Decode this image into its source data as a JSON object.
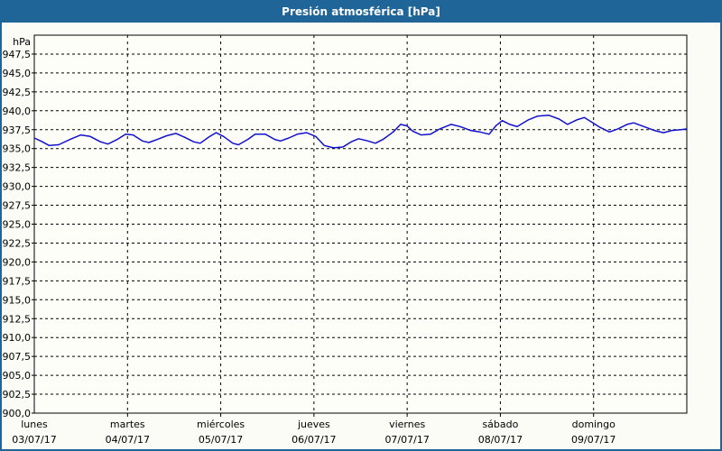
{
  "window": {
    "title": "Presión atmosférica [hPa]"
  },
  "colors": {
    "titlebar": "#1F6598",
    "border": "#1F6598",
    "content_bg": "#FBFCF5",
    "plot_bg": "#FEFEF9",
    "grid": "#000000",
    "axis": "#000000",
    "text": "#000000",
    "title_text": "#FFFFFF",
    "series_line": "#1111CC"
  },
  "chart_data": {
    "type": "line",
    "title": "Presión atmosférica [hPa]",
    "grid": "dashed",
    "legend": "none",
    "y_axis": {
      "unit_label": "hPa",
      "min": 900,
      "max": 950,
      "tick_step": 2.5,
      "ticks": [
        {
          "value": 947.5,
          "label": "947,5"
        },
        {
          "value": 945.0,
          "label": "945,0"
        },
        {
          "value": 942.5,
          "label": "942,5"
        },
        {
          "value": 940.0,
          "label": "940,0"
        },
        {
          "value": 937.5,
          "label": "937,5"
        },
        {
          "value": 935.0,
          "label": "935,0"
        },
        {
          "value": 932.5,
          "label": "932,5"
        },
        {
          "value": 930.0,
          "label": "930,0"
        },
        {
          "value": 927.5,
          "label": "927,5"
        },
        {
          "value": 925.0,
          "label": "925,0"
        },
        {
          "value": 922.5,
          "label": "922,5"
        },
        {
          "value": 920.0,
          "label": "920,0"
        },
        {
          "value": 917.5,
          "label": "917,5"
        },
        {
          "value": 915.0,
          "label": "915,0"
        },
        {
          "value": 912.5,
          "label": "912,5"
        },
        {
          "value": 910.0,
          "label": "910,0"
        },
        {
          "value": 907.5,
          "label": "907,5"
        },
        {
          "value": 905.0,
          "label": "905,0"
        },
        {
          "value": 902.5,
          "label": "902,5"
        },
        {
          "value": 900.0,
          "label": "900,0"
        }
      ]
    },
    "x_axis": {
      "days": [
        {
          "name": "lunes",
          "date": "03/07/17"
        },
        {
          "name": "martes",
          "date": "04/07/17"
        },
        {
          "name": "miércoles",
          "date": "05/07/17"
        },
        {
          "name": "jueves",
          "date": "06/07/17"
        },
        {
          "name": "viernes",
          "date": "07/07/17"
        },
        {
          "name": "sábado",
          "date": "08/07/17"
        },
        {
          "name": "domingo",
          "date": "09/07/17"
        }
      ],
      "domain_days": 7
    },
    "series": [
      {
        "name": "Presión atmosférica",
        "units": "hPa",
        "points": [
          [
            0.0,
            936.4
          ],
          [
            0.07,
            936.0
          ],
          [
            0.16,
            935.4
          ],
          [
            0.26,
            935.5
          ],
          [
            0.4,
            936.3
          ],
          [
            0.5,
            936.8
          ],
          [
            0.6,
            936.6
          ],
          [
            0.71,
            935.9
          ],
          [
            0.79,
            935.6
          ],
          [
            0.89,
            936.2
          ],
          [
            0.98,
            936.9
          ],
          [
            1.06,
            936.8
          ],
          [
            1.16,
            936.0
          ],
          [
            1.23,
            935.8
          ],
          [
            1.32,
            936.2
          ],
          [
            1.42,
            936.7
          ],
          [
            1.52,
            937.0
          ],
          [
            1.61,
            936.5
          ],
          [
            1.71,
            935.9
          ],
          [
            1.78,
            935.7
          ],
          [
            1.87,
            936.5
          ],
          [
            1.95,
            937.1
          ],
          [
            2.03,
            936.6
          ],
          [
            2.13,
            935.7
          ],
          [
            2.19,
            935.5
          ],
          [
            2.29,
            936.2
          ],
          [
            2.37,
            936.9
          ],
          [
            2.48,
            936.9
          ],
          [
            2.58,
            936.2
          ],
          [
            2.64,
            936.0
          ],
          [
            2.73,
            936.4
          ],
          [
            2.82,
            936.9
          ],
          [
            2.92,
            937.1
          ],
          [
            3.02,
            936.6
          ],
          [
            3.11,
            935.4
          ],
          [
            3.21,
            935.1
          ],
          [
            3.31,
            935.2
          ],
          [
            3.4,
            935.9
          ],
          [
            3.48,
            936.3
          ],
          [
            3.58,
            936.0
          ],
          [
            3.66,
            935.7
          ],
          [
            3.74,
            936.2
          ],
          [
            3.85,
            937.2
          ],
          [
            3.93,
            938.2
          ],
          [
            4.0,
            938.0
          ],
          [
            4.06,
            937.3
          ],
          [
            4.15,
            936.8
          ],
          [
            4.25,
            936.9
          ],
          [
            4.35,
            937.6
          ],
          [
            4.47,
            938.2
          ],
          [
            4.57,
            937.9
          ],
          [
            4.68,
            937.4
          ],
          [
            4.78,
            937.2
          ],
          [
            4.88,
            936.9
          ],
          [
            4.95,
            938.0
          ],
          [
            5.02,
            938.7
          ],
          [
            5.1,
            938.2
          ],
          [
            5.18,
            937.9
          ],
          [
            5.3,
            938.8
          ],
          [
            5.4,
            939.3
          ],
          [
            5.52,
            939.4
          ],
          [
            5.63,
            938.9
          ],
          [
            5.72,
            938.2
          ],
          [
            5.82,
            938.8
          ],
          [
            5.9,
            939.1
          ],
          [
            5.98,
            938.5
          ],
          [
            6.07,
            937.8
          ],
          [
            6.17,
            937.2
          ],
          [
            6.26,
            937.6
          ],
          [
            6.36,
            938.2
          ],
          [
            6.43,
            938.4
          ],
          [
            6.52,
            938.0
          ],
          [
            6.65,
            937.4
          ],
          [
            6.75,
            937.1
          ],
          [
            6.84,
            937.4
          ],
          [
            6.94,
            937.5
          ],
          [
            7.0,
            937.6
          ]
        ]
      }
    ]
  }
}
